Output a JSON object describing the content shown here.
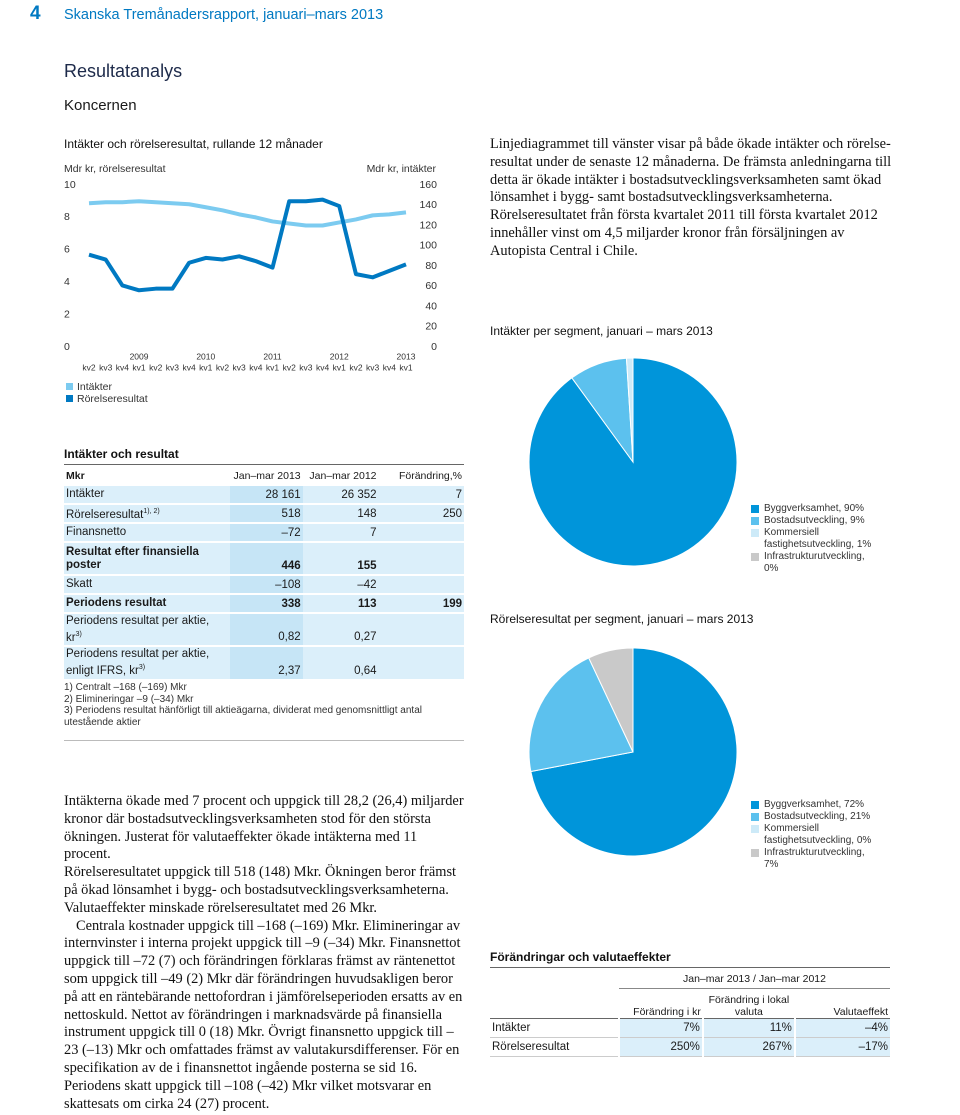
{
  "header": {
    "page_number": "4",
    "title": "Skanska Tremånadersrapport, januari–mars 2013"
  },
  "section": {
    "title": "Resultatanalys",
    "subtitle": "Koncernen"
  },
  "chart_data": [
    {
      "type": "line",
      "title": "Intäkter och rörelseresultat, rullande 12 månader",
      "y_label": "Mdr kr, rörelseresultat",
      "y2_label": "Mdr kr, intäkter",
      "categories": [
        "kv2",
        "kv3",
        "kv4",
        "kv1",
        "kv2",
        "kv3",
        "kv4",
        "kv1",
        "kv2",
        "kv3",
        "kv4",
        "kv1",
        "kv2",
        "kv3",
        "kv4",
        "kv1",
        "kv2",
        "kv3",
        "kv4",
        "kv1"
      ],
      "years": [
        null,
        null,
        null,
        "2009",
        null,
        null,
        null,
        "2010",
        null,
        null,
        null,
        "2011",
        null,
        null,
        null,
        "2012",
        null,
        null,
        null,
        "2013"
      ],
      "series": [
        {
          "name": "Intäkter",
          "color": "#7ccbf0",
          "axis": "y2",
          "values": [
            142,
            143,
            143,
            144,
            143,
            142,
            141,
            138,
            135,
            131,
            128,
            124,
            122,
            120,
            120,
            123,
            126,
            130,
            131,
            133
          ]
        },
        {
          "name": "Rörelseresultat",
          "color": "#0079c2",
          "values": [
            5.7,
            5.4,
            3.8,
            3.5,
            3.6,
            3.6,
            5.2,
            5.5,
            5.4,
            5.6,
            5.3,
            4.9,
            9.0,
            9.0,
            9.1,
            8.7,
            4.5,
            4.3,
            4.7,
            5.1
          ]
        }
      ],
      "ylim": [
        0,
        10
      ],
      "yticks": [
        0,
        2,
        4,
        6,
        8,
        10
      ],
      "y2lim": [
        0,
        160
      ],
      "y2ticks": [
        0,
        20,
        40,
        60,
        80,
        100,
        120,
        140,
        160
      ]
    },
    {
      "type": "pie",
      "title": "Intäkter per segment, januari – mars 2013",
      "categories": [
        "Byggverksamhet, 90%",
        "Bostadsutveckling, 9%",
        "Kommersiell fastighetsutveckling, 1%",
        "Infrastrukturutveckling, 0%"
      ],
      "values": [
        90,
        9,
        1,
        0
      ],
      "colors": [
        "#0095da",
        "#5cc1ee",
        "#cdeaf8",
        "#c9c9c9"
      ]
    },
    {
      "type": "pie",
      "title": "Rörelseresultat per segment, januari – mars 2013",
      "categories": [
        "Byggverksamhet, 72%",
        "Bostadsutveckling, 21%",
        "Kommersiell fastighetsutveckling, 0%",
        "Infrastrukturutveckling, 7%"
      ],
      "values": [
        72,
        21,
        0,
        7
      ],
      "colors": [
        "#0095da",
        "#5cc1ee",
        "#cdeaf8",
        "#c9c9c9"
      ]
    }
  ],
  "intro_text": "Linjediagrammet till vänster visar på både ökade intäkter och rörelse­resultat under de senaste 12 månaderna. De främsta anledningarna till detta är ökade intäkter i bostadsutvecklingsverksamheten samt ökad lönsamhet i bygg- samt bostadsutvecklingsverksamheterna. Rörelseresultatet från första kvartalet 2011 till första kvartalet 2012 innehåller vinst om 4,5 miljarder kronor från försäljningen av Autopista Central i Chile.",
  "results_table": {
    "title": "Intäkter och resultat",
    "columns": [
      "Mkr",
      "Jan–mar 2013",
      "Jan–mar 2012",
      "Förändring,%"
    ],
    "rows": [
      {
        "label": "Intäkter",
        "cells": [
          "28 161",
          "26 352",
          "7"
        ]
      },
      {
        "label": "Rörelseresultat",
        "note": "1), 2)",
        "cells": [
          "518",
          "148",
          "250"
        ]
      },
      {
        "label": "Finansnetto",
        "cells": [
          "–72",
          "7"
        ]
      },
      {
        "label": "Resultat efter finansiella poster",
        "bold": true,
        "cells": [
          "446",
          "155"
        ]
      },
      {
        "label": "Skatt",
        "cells": [
          "–108",
          "–42"
        ]
      },
      {
        "label": "Periodens resultat",
        "bold": true,
        "cells": [
          "338",
          "113",
          "199"
        ]
      },
      {
        "label": "Periodens resultat per aktie, kr",
        "note": "3)",
        "cells": [
          "0,82",
          "0,27"
        ]
      },
      {
        "label": "Periodens resultat per aktie, enligt IFRS, kr",
        "note": "3)",
        "cells": [
          "2,37",
          "0,64"
        ]
      }
    ],
    "footnotes": [
      "1) Centralt –168 (–169) Mkr",
      "2) Elimineringar –9 (–34) Mkr",
      "3) Periodens resultat hänförligt till aktieägarna, dividerat med genomsnittligt antal utestående aktier"
    ]
  },
  "body_text": [
    "Intäkterna ökade med 7 procent och uppgick till 28,2 (26,4) miljarder kronor där bostadsutvecklingsverksamheten stod för den största ökningen. Justerat för valutaeffekter ökade intäkterna med 11 procent.",
    "Rörelseresultatet uppgick till 518 (148) Mkr. Ökningen beror främst på ökad lönsamhet i bygg- och bostadsutvecklingsverksamheterna. Valutaeffekter minskade rörelseresultatet med 26 Mkr.",
    "Centrala kostnader uppgick till –168 (–169) Mkr. Elimineringar av internvinster i interna projekt uppgick till –9 (–34) Mkr. Finansnettot uppgick till –72 (7) och förändringen förklaras främst av räntenettot som uppgick till –49 (2) Mkr där förändringen huvudsakligen beror på att en räntebärande nettofordran i jämförelseperioden ersatts av en nettoskuld. Nettot av förändringen i marknadsvärde på finansiella instrument uppgick till 0 (18) Mkr. Övrigt finansnetto uppgick till –23 (–13) Mkr och omfattades främst av valutakursdifferenser. För en specifikation av de i finansnettot ingående posterna se sid 16.",
    "Periodens skatt uppgick till –108 (–42) Mkr vilket motsvarar en skattesats om cirka 24 (27) procent."
  ],
  "fx_table": {
    "title": "Förändringar och valutaeffekter",
    "group_header": "Jan–mar 2013 / Jan–mar 2012",
    "columns": [
      "Förändring i kr",
      "Förändring i lokal valuta",
      "Valutaeffekt"
    ],
    "rows": [
      {
        "label": "Intäkter",
        "cells": [
          "7%",
          "11%",
          "–4%"
        ]
      },
      {
        "label": "Rörelseresultat",
        "cells": [
          "250%",
          "267%",
          "–17%"
        ]
      }
    ]
  }
}
